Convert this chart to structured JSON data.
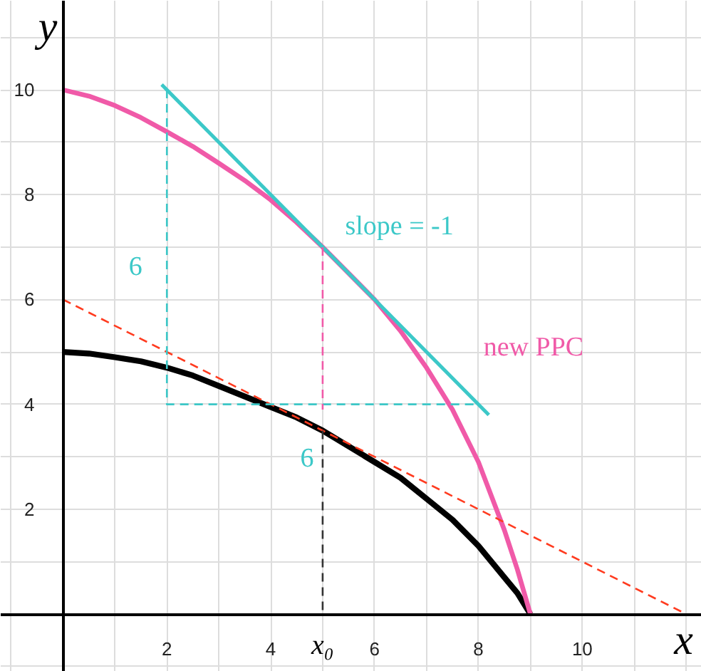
{
  "chart_data": {
    "type": "line",
    "xlabel": "x",
    "ylabel": "y",
    "xlim": [
      -1.2,
      12.3
    ],
    "ylim": [
      -1.1,
      11.7
    ],
    "xticks": [
      {
        "value": -1,
        "label": null
      },
      {
        "value": 1,
        "label": null
      },
      2,
      {
        "value": 3,
        "label": null
      },
      4,
      {
        "value": 5,
        "label": null
      },
      6,
      {
        "value": 7,
        "label": null
      },
      8,
      {
        "value": 9,
        "label": null
      },
      10,
      {
        "value": 11,
        "label": null
      },
      {
        "value": 12,
        "label": null
      }
    ],
    "yticks": [
      {
        "value": -1,
        "label": null
      },
      {
        "value": 1,
        "label": null
      },
      2,
      {
        "value": 3,
        "label": null
      },
      4,
      {
        "value": 5,
        "label": null
      },
      6,
      {
        "value": 7,
        "label": null
      },
      8,
      {
        "value": 9,
        "label": null
      },
      10,
      {
        "value": 11,
        "label": null
      }
    ],
    "grid": true,
    "marker": "none",
    "series": [
      {
        "color": "#000000",
        "x": [
          0,
          0.5,
          1,
          1.5,
          2,
          2.5,
          3,
          3.5,
          4,
          4.5,
          5,
          5.5,
          6,
          6.5,
          7,
          7.5,
          8,
          8.5,
          8.75,
          9
        ],
        "values": [
          5,
          4.97,
          4.9,
          4.82,
          4.7,
          4.55,
          4.35,
          4.15,
          3.95,
          3.75,
          3.5,
          3.2,
          2.9,
          2.6,
          2.2,
          1.8,
          1.3,
          0.7,
          0.4,
          0
        ]
      },
      {
        "color": "#f05aa8",
        "x": [
          0,
          0.5,
          1,
          1.5,
          2,
          2.5,
          3,
          3.5,
          4,
          4.5,
          5,
          5.5,
          6,
          6.5,
          7,
          7.5,
          8,
          8.5,
          8.75,
          9
        ],
        "values": [
          10,
          9.88,
          9.7,
          9.47,
          9.2,
          8.92,
          8.6,
          8.27,
          7.9,
          7.47,
          7,
          6.5,
          6.0,
          5.4,
          4.7,
          3.9,
          2.9,
          1.6,
          0.85,
          0
        ]
      },
      {
        "color": "#3cc8c8",
        "x": [
          1.9,
          8.2
        ],
        "values": [
          10.1,
          3.8
        ]
      },
      {
        "color": "#ff3b1f",
        "x": [
          0,
          12
        ],
        "values": [
          6,
          0
        ],
        "line_style": "dashed"
      },
      {
        "color": "#3cc8c8",
        "x": [
          2,
          2,
          8
        ],
        "values": [
          10,
          4,
          4
        ],
        "line_style": "dashed"
      },
      {
        "color": "#f05aa8",
        "x": [
          5,
          5
        ],
        "values": [
          7,
          3.9
        ],
        "line_style": "dashed"
      },
      {
        "color": "#333333",
        "x": [
          5,
          5
        ],
        "values": [
          3.5,
          0
        ],
        "line_style": "dashed"
      }
    ],
    "annotations": [
      {
        "text": "slope = -1",
        "x": 4.5,
        "y": 7.5
      },
      {
        "text": "new PPC",
        "x": 7,
        "y": 4.7
      },
      {
        "text": "6",
        "x": 2,
        "y": 7
      },
      {
        "text": "6",
        "x": 5,
        "y": 4
      },
      {
        "text": "x₀",
        "x": 5,
        "y": 0
      }
    ]
  }
}
